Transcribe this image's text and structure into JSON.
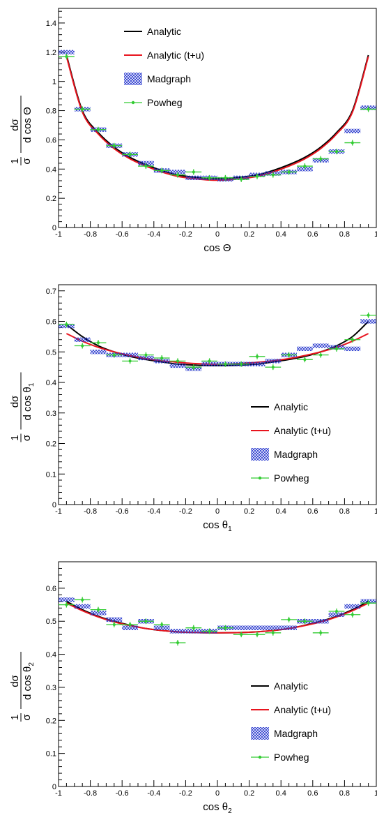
{
  "legend": {
    "analytic": "Analytic",
    "analytic_tu": "Analytic (t+u)",
    "madgraph": "Madgraph",
    "powheg": "Powheg"
  },
  "colors": {
    "analytic": "#000000",
    "analytic_tu": "#e8141e",
    "madgraph": "#2233cc",
    "powheg": "#33cc33"
  },
  "chart_data": [
    {
      "type": "line",
      "xlabel_main": "cos Θ",
      "xlabel_sub": "",
      "ylabel_denominator": "d cos Θ",
      "ylabel_sub": "",
      "xlim": [
        -1,
        1
      ],
      "ylim": [
        0,
        1.5
      ],
      "xticks": [
        "-1",
        "-0.8",
        "-0.6",
        "-0.4",
        "-0.2",
        "0",
        "0.2",
        "0.4",
        "0.6",
        "0.8",
        "1"
      ],
      "yticks": [
        "0",
        "0.2",
        "0.4",
        "0.6",
        "0.8",
        "1",
        "1.2",
        "1.4"
      ],
      "ytick_values": [
        0,
        0.2,
        0.4,
        0.6,
        0.8,
        1.0,
        1.2,
        1.4
      ],
      "legend_position": "top-left",
      "x": [
        -0.95,
        -0.85,
        -0.75,
        -0.65,
        -0.55,
        -0.45,
        -0.35,
        -0.25,
        -0.15,
        -0.05,
        0.05,
        0.15,
        0.25,
        0.35,
        0.45,
        0.55,
        0.65,
        0.75,
        0.85,
        0.95
      ],
      "series": [
        {
          "name": "Analytic",
          "style": "curve",
          "values": [
            1.18,
            0.8,
            0.65,
            0.55,
            0.48,
            0.43,
            0.39,
            0.36,
            0.345,
            0.335,
            0.335,
            0.345,
            0.36,
            0.39,
            0.43,
            0.48,
            0.55,
            0.65,
            0.8,
            1.18
          ]
        },
        {
          "name": "Analytic (t+u)",
          "style": "curve",
          "values": [
            1.17,
            0.79,
            0.64,
            0.54,
            0.47,
            0.42,
            0.38,
            0.35,
            0.335,
            0.325,
            0.325,
            0.335,
            0.35,
            0.38,
            0.42,
            0.47,
            0.54,
            0.64,
            0.79,
            1.17
          ]
        },
        {
          "name": "Madgraph",
          "style": "band",
          "values": [
            1.2,
            0.81,
            0.67,
            0.56,
            0.5,
            0.44,
            0.39,
            0.38,
            0.34,
            0.34,
            0.33,
            0.34,
            0.36,
            0.37,
            0.38,
            0.4,
            0.46,
            0.52,
            0.66,
            0.82
          ]
        },
        {
          "name": "Powheg",
          "style": "points",
          "values": [
            1.17,
            0.81,
            0.67,
            0.56,
            0.5,
            0.42,
            0.39,
            0.36,
            0.38,
            0.34,
            0.34,
            0.33,
            0.35,
            0.36,
            0.38,
            0.42,
            0.47,
            0.52,
            0.58,
            0.81
          ]
        }
      ]
    },
    {
      "type": "line",
      "xlabel_main": "cos θ",
      "xlabel_sub": "1",
      "ylabel_denominator": "d cos θ",
      "ylabel_sub": "1",
      "xlim": [
        -1,
        1
      ],
      "ylim": [
        0,
        0.72
      ],
      "xticks": [
        "-1",
        "-0.8",
        "-0.6",
        "-0.4",
        "-0.2",
        "0",
        "0.2",
        "0.4",
        "0.6",
        "0.8",
        "1"
      ],
      "yticks": [
        "0",
        "0.1",
        "0.2",
        "0.3",
        "0.4",
        "0.5",
        "0.6",
        "0.7"
      ],
      "ytick_values": [
        0,
        0.1,
        0.2,
        0.3,
        0.4,
        0.5,
        0.6,
        0.7
      ],
      "legend_position": "bottom-right",
      "x": [
        -0.95,
        -0.85,
        -0.75,
        -0.65,
        -0.55,
        -0.45,
        -0.35,
        -0.25,
        -0.15,
        -0.05,
        0.05,
        0.15,
        0.25,
        0.35,
        0.45,
        0.55,
        0.65,
        0.75,
        0.85,
        0.95
      ],
      "series": [
        {
          "name": "Analytic",
          "style": "curve",
          "values": [
            0.59,
            0.55,
            0.52,
            0.5,
            0.485,
            0.475,
            0.467,
            0.46,
            0.457,
            0.455,
            0.455,
            0.457,
            0.46,
            0.467,
            0.475,
            0.485,
            0.5,
            0.52,
            0.55,
            0.6
          ]
        },
        {
          "name": "Analytic (t+u)",
          "style": "curve",
          "values": [
            0.56,
            0.535,
            0.515,
            0.5,
            0.488,
            0.478,
            0.471,
            0.466,
            0.462,
            0.46,
            0.46,
            0.462,
            0.466,
            0.471,
            0.478,
            0.488,
            0.5,
            0.515,
            0.535,
            0.56
          ]
        },
        {
          "name": "Madgraph",
          "style": "band",
          "values": [
            0.585,
            0.54,
            0.5,
            0.49,
            0.49,
            0.48,
            0.47,
            0.455,
            0.445,
            0.46,
            0.46,
            0.46,
            0.46,
            0.47,
            0.49,
            0.51,
            0.52,
            0.515,
            0.51,
            0.6
          ]
        },
        {
          "name": "Powheg",
          "style": "points",
          "values": [
            0.59,
            0.52,
            0.53,
            0.49,
            0.47,
            0.49,
            0.48,
            0.47,
            0.45,
            0.47,
            0.46,
            0.46,
            0.485,
            0.45,
            0.49,
            0.475,
            0.49,
            0.51,
            0.54,
            0.62
          ]
        }
      ]
    },
    {
      "type": "line",
      "xlabel_main": "cos θ",
      "xlabel_sub": "2",
      "ylabel_denominator": "d cos θ",
      "ylabel_sub": "2",
      "xlim": [
        -1,
        1
      ],
      "ylim": [
        0,
        0.68
      ],
      "xticks": [
        "-1",
        "-0.8",
        "-0.6",
        "-0.4",
        "-0.2",
        "0",
        "0.2",
        "0.4",
        "0.6",
        "0.8",
        "1"
      ],
      "yticks": [
        "0",
        "0.1",
        "0.2",
        "0.3",
        "0.4",
        "0.5",
        "0.6"
      ],
      "ytick_values": [
        0,
        0.1,
        0.2,
        0.3,
        0.4,
        0.5,
        0.6
      ],
      "legend_position": "bottom-right",
      "x": [
        -0.95,
        -0.85,
        -0.75,
        -0.65,
        -0.55,
        -0.45,
        -0.35,
        -0.25,
        -0.15,
        -0.05,
        0.05,
        0.15,
        0.25,
        0.35,
        0.45,
        0.55,
        0.65,
        0.75,
        0.85,
        0.95
      ],
      "series": [
        {
          "name": "Analytic",
          "style": "curve",
          "values": [
            0.56,
            0.535,
            0.515,
            0.5,
            0.488,
            0.478,
            0.472,
            0.468,
            0.466,
            0.465,
            0.465,
            0.466,
            0.468,
            0.472,
            0.478,
            0.488,
            0.5,
            0.515,
            0.535,
            0.56
          ]
        },
        {
          "name": "Analytic (t+u)",
          "style": "curve",
          "values": [
            0.555,
            0.532,
            0.513,
            0.498,
            0.487,
            0.478,
            0.472,
            0.468,
            0.466,
            0.465,
            0.465,
            0.466,
            0.468,
            0.472,
            0.478,
            0.487,
            0.498,
            0.513,
            0.532,
            0.555
          ]
        },
        {
          "name": "Madgraph",
          "style": "band",
          "values": [
            0.565,
            0.545,
            0.525,
            0.505,
            0.48,
            0.5,
            0.48,
            0.47,
            0.47,
            0.47,
            0.48,
            0.48,
            0.48,
            0.48,
            0.48,
            0.5,
            0.5,
            0.52,
            0.545,
            0.56
          ]
        },
        {
          "name": "Powheg",
          "style": "points",
          "values": [
            0.55,
            0.565,
            0.535,
            0.49,
            0.49,
            0.5,
            0.49,
            0.435,
            0.48,
            0.47,
            0.48,
            0.46,
            0.46,
            0.465,
            0.505,
            0.5,
            0.465,
            0.53,
            0.52,
            0.555
          ]
        }
      ]
    }
  ]
}
